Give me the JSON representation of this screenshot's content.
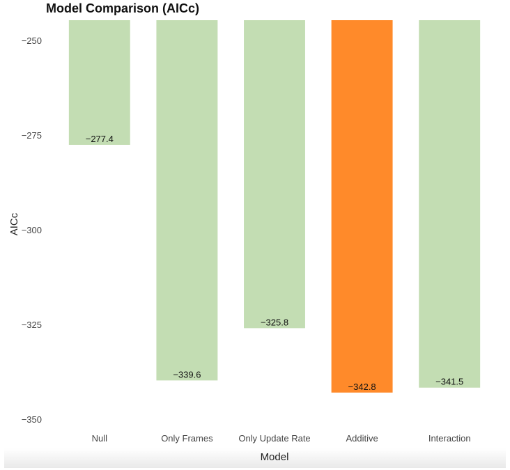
{
  "chart_data": {
    "type": "bar",
    "title": "Model Comparison (AICc)",
    "xlabel": "Model",
    "ylabel": "AICc",
    "categories": [
      "Null",
      "Only Frames",
      "Only Update Rate",
      "Additive",
      "Interaction"
    ],
    "values": [
      -277.4,
      -339.6,
      -325.8,
      -342.8,
      -341.5
    ],
    "value_labels": [
      "−277.4",
      "−339.6",
      "−325.8",
      "−342.8",
      "−341.5"
    ],
    "highlight_index": 3,
    "yticks": [
      -250,
      -275,
      -300,
      -325,
      -350
    ],
    "ytick_labels": [
      "−250",
      "−275",
      "−300",
      "−325",
      "−350"
    ],
    "ylim": [
      -353.5,
      -244.5
    ],
    "grid": false,
    "colors": {
      "bar": "#c3ddb3",
      "highlight": "#ff8a2a"
    }
  }
}
